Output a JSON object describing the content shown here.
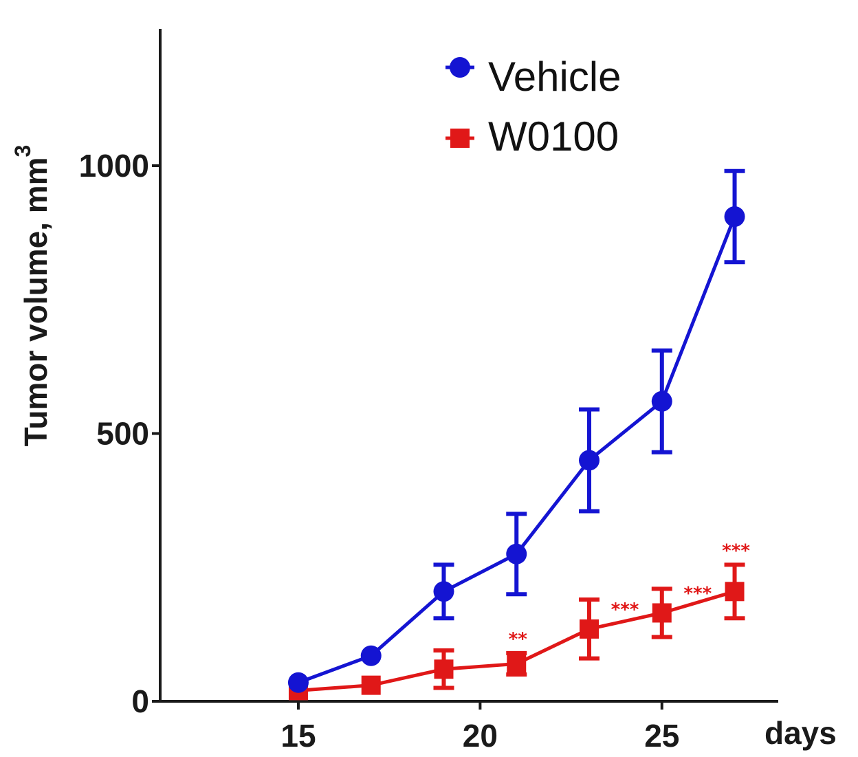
{
  "chart_data": {
    "type": "line",
    "title": "",
    "xlabel": "days",
    "ylabel": "Tumor volume, mm",
    "ylabel_superscript": "3",
    "xlim": [
      11.2,
      28.2
    ],
    "ylim": [
      0,
      1000
    ],
    "x_ticks": [
      15,
      20,
      25
    ],
    "y_ticks": [
      0,
      500,
      1000
    ],
    "x": [
      15,
      17,
      19,
      21,
      23,
      25,
      27
    ],
    "legend_position": "top-center",
    "grid": false,
    "series": [
      {
        "name": "Vehicle",
        "color": "#1414d2",
        "marker": "circle",
        "values": [
          35,
          85,
          205,
          275,
          450,
          560,
          905
        ],
        "errors": [
          0,
          0,
          50,
          75,
          95,
          95,
          85
        ]
      },
      {
        "name": "W0100",
        "color": "#e01818",
        "marker": "square",
        "values": [
          20,
          30,
          60,
          70,
          135,
          165,
          205
        ],
        "errors": [
          0,
          0,
          35,
          20,
          55,
          45,
          50
        ],
        "annotations": [
          "",
          "",
          "",
          "**",
          "***",
          "***",
          "***"
        ]
      }
    ]
  }
}
